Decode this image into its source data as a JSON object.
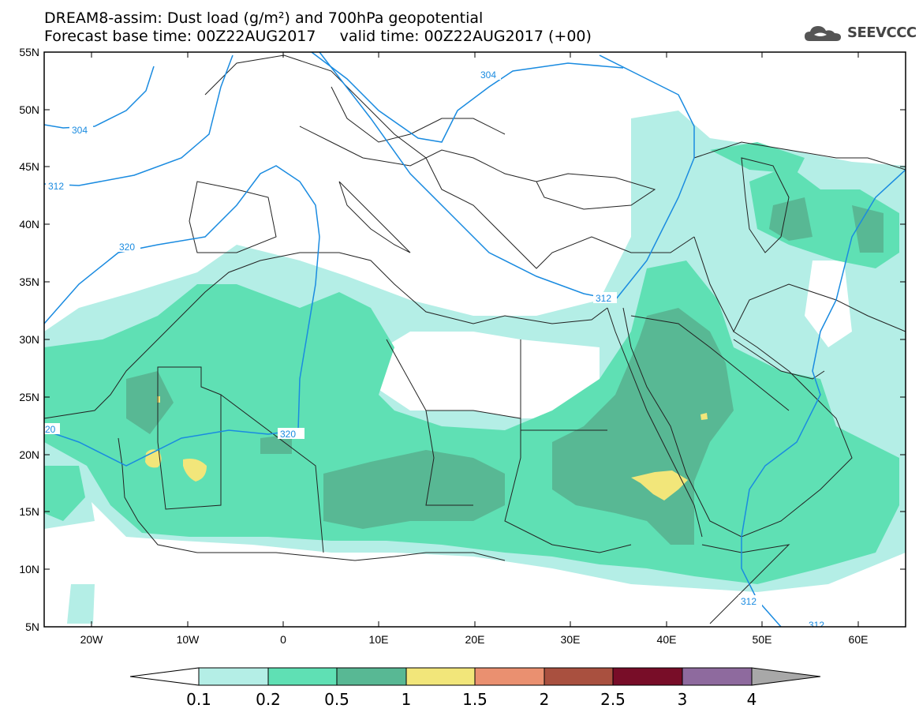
{
  "title": {
    "line1": "DREAM8-assim: Dust load (g/m²) and 700hPa geopotential",
    "line2": "Forecast base time: 00Z22AUG2017     valid time: 00Z22AUG2017 (+00)"
  },
  "logo": {
    "text": "SEEVCCC",
    "icon": "cloud-icon"
  },
  "map": {
    "lat_labels": [
      "55N",
      "50N",
      "45N",
      "40N",
      "35N",
      "30N",
      "25N",
      "20N",
      "15N",
      "10N",
      "5N"
    ],
    "lon_labels": [
      "20W",
      "10W",
      "0",
      "10E",
      "20E",
      "30E",
      "40E",
      "50E",
      "60E"
    ],
    "contour_labels": [
      "304",
      "304",
      "312",
      "320",
      "312",
      "320",
      "20",
      "312",
      "312"
    ],
    "colors": {
      "frame": "#000000",
      "contour": "#1a8be0",
      "border": "#222222"
    }
  },
  "colorbar": {
    "labels": [
      "0.1",
      "0.2",
      "0.5",
      "1",
      "1.5",
      "2",
      "2.5",
      "3",
      "4"
    ],
    "colors": [
      "#b4eee6",
      "#5fe0b4",
      "#58b894",
      "#f2e67a",
      "#ea9070",
      "#a9503f",
      "#780d28",
      "#8e6a9e",
      "#a8a8a8"
    ],
    "under_color": "#ffffff",
    "over_color": "#a8a8a8"
  }
}
